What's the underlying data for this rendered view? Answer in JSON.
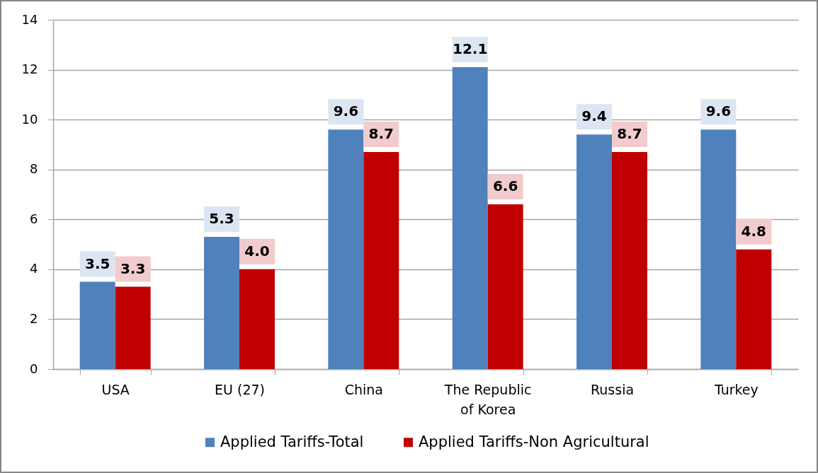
{
  "chart_data": {
    "type": "bar",
    "categories": [
      "USA",
      "EU (27)",
      "China",
      "The Republic of Korea",
      "Russia",
      "Turkey"
    ],
    "series": [
      {
        "name": "Applied Tariffs-Total",
        "color": "#4f81bd",
        "values": [
          3.5,
          5.3,
          9.6,
          12.1,
          9.4,
          9.6
        ],
        "value_labels": [
          "3.5",
          "5.3",
          "9.6",
          "12.1",
          "9.4",
          "9.6"
        ]
      },
      {
        "name": "Applied Tariffs-Non Agricultural",
        "color": "#c00000",
        "values": [
          3.3,
          4.0,
          8.7,
          6.6,
          8.7,
          4.8
        ],
        "value_labels": [
          "3.3",
          "4.0",
          "8.7",
          "6.6",
          "8.7",
          "4.8"
        ]
      }
    ],
    "ylim": [
      0,
      14
    ],
    "yticks": [
      0,
      2,
      4,
      6,
      8,
      10,
      12,
      14
    ],
    "grid": "y",
    "legend": "bottom"
  }
}
